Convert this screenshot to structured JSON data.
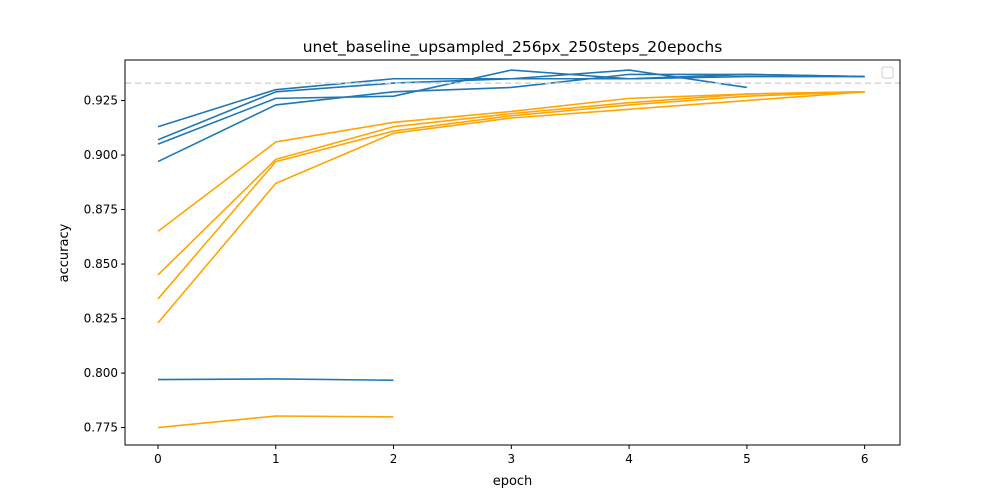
{
  "chart_data": {
    "type": "line",
    "title": "unet_baseline_upsampled_256px_250steps_20epochs",
    "xlabel": "epoch",
    "ylabel": "accuracy",
    "xlim": [
      -0.28,
      6.3
    ],
    "ylim": [
      0.767,
      0.9436
    ],
    "xticks": [
      0,
      1,
      2,
      3,
      4,
      5,
      6
    ],
    "yticks": [
      0.775,
      0.8,
      0.825,
      0.85,
      0.875,
      0.9,
      0.925
    ],
    "ytick_labels": [
      "0.775",
      "0.800",
      "0.825",
      "0.850",
      "0.875",
      "0.900",
      "0.925"
    ],
    "grid": false,
    "legend": "top-right (empty)",
    "reference_line": {
      "y": 0.933,
      "style": "dashed",
      "color": "#d3d3d3"
    },
    "colors": {
      "val": "#1f77b4",
      "train": "#ffa500"
    },
    "series": [
      {
        "group": "val",
        "x": [
          0,
          1,
          2,
          3,
          4,
          5,
          6
        ],
        "y": [
          0.913,
          0.93,
          0.935,
          0.935,
          0.935,
          0.936,
          0.936
        ]
      },
      {
        "group": "val",
        "x": [
          0,
          1,
          2,
          3,
          4,
          5,
          6
        ],
        "y": [
          0.907,
          0.929,
          0.933,
          0.935,
          0.939,
          0.931,
          null
        ]
      },
      {
        "group": "val",
        "x": [
          0,
          1,
          2,
          3,
          4,
          5,
          6
        ],
        "y": [
          0.905,
          0.926,
          0.927,
          0.939,
          0.935,
          0.937,
          0.936
        ]
      },
      {
        "group": "val",
        "x": [
          0,
          1,
          2,
          3,
          4,
          5,
          6
        ],
        "y": [
          0.897,
          0.923,
          0.929,
          0.931,
          0.937,
          0.937,
          0.936
        ]
      },
      {
        "group": "val",
        "x": [
          0,
          1,
          2
        ],
        "y": [
          0.797,
          0.7973,
          0.7967
        ]
      },
      {
        "group": "train",
        "x": [
          0,
          1,
          2,
          3,
          4,
          5,
          6
        ],
        "y": [
          0.865,
          0.906,
          0.915,
          0.92,
          0.926,
          0.928,
          0.929
        ]
      },
      {
        "group": "train",
        "x": [
          0,
          1,
          2,
          3,
          4,
          5,
          6
        ],
        "y": [
          0.845,
          0.898,
          0.913,
          0.919,
          0.924,
          0.928,
          0.929
        ]
      },
      {
        "group": "train",
        "x": [
          0,
          1,
          2,
          3,
          4,
          5,
          6
        ],
        "y": [
          0.834,
          0.897,
          0.911,
          0.918,
          0.923,
          0.927,
          0.929
        ]
      },
      {
        "group": "train",
        "x": [
          0,
          1,
          2,
          3,
          4,
          5,
          6
        ],
        "y": [
          0.823,
          0.887,
          0.91,
          0.917,
          0.921,
          0.925,
          0.929
        ]
      },
      {
        "group": "train",
        "x": [
          0,
          1,
          2
        ],
        "y": [
          0.775,
          0.7803,
          0.7799
        ]
      }
    ]
  }
}
